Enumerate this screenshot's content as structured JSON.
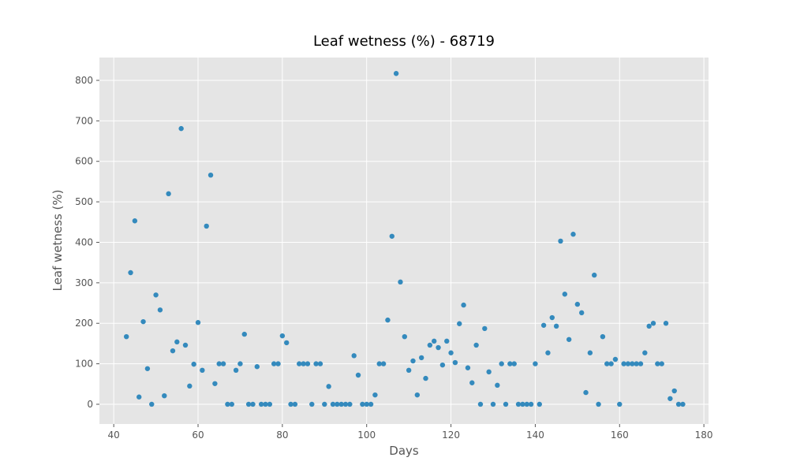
{
  "chart_data": {
    "type": "scatter",
    "title": "Leaf wetness (%) - 68719",
    "x_label": "Days",
    "y_label": "Leaf wetness (%)",
    "color": "#348abd",
    "grid": true,
    "x": [
      43,
      44,
      45,
      46,
      47,
      48,
      49,
      50,
      51,
      52,
      53,
      54,
      55,
      56,
      57,
      58,
      59,
      60,
      61,
      62,
      63,
      64,
      65,
      66,
      67,
      68,
      69,
      70,
      71,
      72,
      73,
      74,
      75,
      76,
      77,
      78,
      79,
      80,
      81,
      82,
      83,
      84,
      85,
      86,
      87,
      88,
      89,
      90,
      91,
      92,
      93,
      94,
      95,
      96,
      97,
      98,
      99,
      100,
      101,
      102,
      103,
      104,
      105,
      106,
      107,
      108,
      109,
      110,
      111,
      112,
      113,
      114,
      115,
      116,
      117,
      118,
      119,
      120,
      121,
      122,
      123,
      124,
      125,
      126,
      127,
      128,
      129,
      130,
      131,
      132,
      133,
      134,
      135,
      136,
      137,
      138,
      139,
      140,
      141,
      142,
      143,
      144,
      145,
      146,
      147,
      148,
      149,
      150,
      151,
      152,
      153,
      154,
      155,
      156,
      157,
      158,
      159,
      160,
      161,
      162,
      163,
      164,
      165,
      166,
      167,
      168,
      169,
      170,
      171,
      172,
      173,
      174,
      175
    ],
    "values": [
      167,
      325,
      453,
      18,
      204,
      88,
      0,
      270,
      233,
      21,
      520,
      132,
      154,
      681,
      146,
      45,
      99,
      202,
      84,
      440,
      566,
      51,
      100,
      100,
      0,
      0,
      84,
      100,
      173,
      0,
      0,
      93,
      0,
      0,
      0,
      100,
      100,
      169,
      152,
      0,
      0,
      100,
      100,
      100,
      0,
      100,
      100,
      0,
      44,
      0,
      0,
      0,
      0,
      0,
      120,
      72,
      0,
      0,
      0,
      23,
      100,
      100,
      208,
      415,
      817,
      302,
      167,
      84,
      107,
      23,
      115,
      64,
      146,
      156,
      140,
      97,
      156,
      127,
      103,
      199,
      245,
      90,
      53,
      146,
      0,
      187,
      80,
      0,
      47,
      100,
      0,
      100,
      100,
      0,
      0,
      0,
      0,
      100,
      0,
      195,
      127,
      214,
      193,
      403,
      272,
      160,
      420,
      247,
      226,
      29,
      127,
      319,
      0,
      167,
      100,
      100,
      111,
      0,
      100,
      100,
      100,
      100,
      100,
      127,
      193,
      200,
      100,
      100,
      200,
      14,
      33,
      0,
      0
    ],
    "xlim": [
      36.6,
      181.1
    ],
    "ylim": [
      -48.7,
      856.4
    ],
    "xticks": [
      40,
      60,
      80,
      100,
      120,
      140,
      160,
      180
    ],
    "yticks": [
      0,
      100,
      200,
      300,
      400,
      500,
      600,
      700,
      800
    ]
  }
}
